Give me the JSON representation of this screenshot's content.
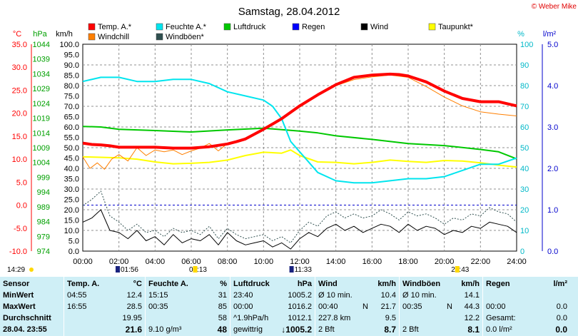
{
  "title": "Samstag, 28.04.2012",
  "copyright": "© Weber Mike",
  "legend": [
    {
      "label": "Temp. A.*",
      "color": "#ff0000"
    },
    {
      "label": "Windchill",
      "color": "#ff7f00"
    },
    {
      "label": "Feuchte A.*",
      "color": "#00e5ee"
    },
    {
      "label": "Windböen*",
      "color": "#2f4f4f"
    },
    {
      "label": "Luftdruck",
      "color": "#00c800"
    },
    {
      "label": "Regen",
      "color": "#0000ff"
    },
    {
      "label": "Wind",
      "color": "#000000"
    },
    {
      "label": "Taupunkt*",
      "color": "#ffff00"
    }
  ],
  "axes": {
    "temp_unit": "°C",
    "pressure_unit": "hPa",
    "wind_unit": "km/h",
    "humidity_unit": "%",
    "rain_unit": "l/m²",
    "temp_ticks": [
      "35.0",
      "30.0",
      "25.0",
      "20.0",
      "15.0",
      "10.0",
      "5.0",
      "0.0",
      "-5.0",
      "-10.0"
    ],
    "pressure_ticks": [
      "1044",
      "1039",
      "1034",
      "1029",
      "1024",
      "1019",
      "1014",
      "1009",
      "1004",
      "999",
      "994",
      "989",
      "984",
      "979",
      "974"
    ],
    "wind_ticks": [
      "100.0",
      "95.0",
      "90.0",
      "85.0",
      "80.0",
      "75.0",
      "70.0",
      "65.0",
      "60.0",
      "55.0",
      "50.0",
      "45.0",
      "40.0",
      "35.0",
      "30.0",
      "25.0",
      "20.0",
      "15.0",
      "10.0",
      "5.0",
      "0.0"
    ],
    "humidity_ticks": [
      "100",
      "90",
      "80",
      "70",
      "60",
      "50",
      "40",
      "30",
      "20",
      "10",
      "0"
    ],
    "rain_ticks": [
      "5.0",
      "4.0",
      "3.0",
      "2.0",
      "1.0",
      "0.0"
    ],
    "x_ticks": [
      "00:00",
      "02:00",
      "04:00",
      "06:00",
      "08:00",
      "10:00",
      "12:00",
      "14:00",
      "16:00",
      "18:00",
      "20:00",
      "22:00",
      "24:00"
    ],
    "sun_events": [
      "14:29",
      "01:56",
      "06:13",
      "11:33",
      "20:43"
    ]
  },
  "chart_data": {
    "type": "line",
    "title": "Samstag, 28.04.2012",
    "x_unit": "hours",
    "xlim": [
      0,
      24
    ],
    "temp_ylim": [
      -10,
      35
    ],
    "wind_ylim": [
      0,
      100
    ],
    "pressure_ylim": [
      974,
      1044
    ],
    "humidity_ylim": [
      0,
      100
    ],
    "rain_ylim": [
      0,
      5
    ],
    "series": [
      {
        "name": "Temp. A.*",
        "axis": "temp",
        "color": "#ff0000",
        "width": 4,
        "x": [
          0,
          0.5,
          1,
          1.5,
          2,
          3,
          4,
          5,
          6,
          7,
          8,
          8.5,
          9,
          10,
          11,
          12,
          13,
          14,
          15,
          16,
          17,
          17.5,
          18,
          19,
          20,
          21,
          22,
          23,
          24
        ],
        "y": [
          13.5,
          13.2,
          13.1,
          12.9,
          12.6,
          12.6,
          12.6,
          12.4,
          12.4,
          12.7,
          13.3,
          13.8,
          14.4,
          16.5,
          18.8,
          21.6,
          24.0,
          26.2,
          27.8,
          28.3,
          28.5,
          28.4,
          28.1,
          26.8,
          24.8,
          23.2,
          22.5,
          22.5,
          21.6
        ]
      },
      {
        "name": "Windchill",
        "axis": "temp",
        "color": "#ff7f00",
        "width": 1,
        "x": [
          0,
          0.4,
          0.8,
          1.2,
          1.6,
          2,
          2.5,
          3,
          3.5,
          4,
          4.5,
          5,
          5.5,
          6,
          6.5,
          7,
          7.5,
          8,
          8.5,
          9,
          10,
          11,
          12,
          13,
          14,
          15,
          16,
          17,
          18,
          19,
          20,
          21,
          22,
          23,
          24
        ],
        "y": [
          10.5,
          8.0,
          9.2,
          7.8,
          10.0,
          11.0,
          9.6,
          12.5,
          10.8,
          12.0,
          11.6,
          12.0,
          11.0,
          11.8,
          12.4,
          13.4,
          11.8,
          13.4,
          13.6,
          14.3,
          16.4,
          18.6,
          21.3,
          23.8,
          26.0,
          27.3,
          27.9,
          28.3,
          27.8,
          25.8,
          23.5,
          21.6,
          20.3,
          19.8,
          19.4
        ]
      },
      {
        "name": "Feuchte A.*",
        "axis": "humidity",
        "color": "#00e5ee",
        "width": 2,
        "x": [
          0,
          1,
          2,
          3,
          4,
          5,
          6,
          7,
          8,
          9,
          10,
          10.5,
          11,
          11.5,
          12,
          12.5,
          13,
          14,
          15,
          16,
          17,
          18,
          19,
          20,
          21,
          22,
          23,
          24
        ],
        "y": [
          82,
          84,
          84,
          82,
          82,
          83,
          83,
          81,
          77,
          75,
          73,
          70,
          64,
          53,
          48,
          43,
          38,
          34,
          33,
          33,
          34,
          35,
          35,
          36,
          39,
          42,
          42,
          45
        ]
      },
      {
        "name": "Luftdruck",
        "axis": "pressure",
        "color": "#00c800",
        "width": 2,
        "x": [
          0,
          1,
          2,
          4,
          6,
          8,
          10,
          12,
          13,
          14,
          16,
          18,
          20,
          22,
          23,
          24
        ],
        "y": [
          1016.2,
          1016.0,
          1015.2,
          1014.8,
          1014.3,
          1015.0,
          1015.6,
          1014.6,
          1014.0,
          1013.0,
          1011.8,
          1010.4,
          1009.7,
          1008.4,
          1007.6,
          1005.2
        ]
      },
      {
        "name": "Taupunkt*",
        "axis": "temp",
        "color": "#ffff00",
        "width": 2,
        "x": [
          0,
          1,
          2,
          3,
          4,
          5,
          6,
          7,
          8,
          9,
          10,
          11,
          11.5,
          12,
          13,
          14,
          15,
          16,
          17,
          18,
          19,
          20,
          21,
          22,
          23,
          24
        ],
        "y": [
          10.5,
          10.4,
          10.3,
          10.0,
          9.4,
          9.0,
          9.1,
          9.3,
          9.8,
          10.8,
          11.5,
          11.3,
          12.0,
          10.8,
          9.4,
          9.3,
          9.0,
          9.3,
          9.8,
          9.5,
          9.3,
          9.7,
          9.6,
          9.2,
          8.7,
          8.3
        ]
      },
      {
        "name": "Wind",
        "axis": "wind",
        "color": "#000000",
        "width": 1,
        "x": [
          0,
          0.5,
          1,
          1.5,
          2,
          2.5,
          3,
          3.5,
          4,
          4.5,
          5,
          5.5,
          6,
          6.5,
          7,
          7.5,
          8,
          8.5,
          9,
          9.5,
          10,
          10.5,
          11,
          11.5,
          12,
          12.5,
          13,
          13.5,
          14,
          14.5,
          15,
          15.5,
          16,
          16.5,
          17,
          17.5,
          18,
          18.5,
          19,
          19.5,
          20,
          20.5,
          21,
          21.5,
          22,
          22.5,
          23,
          23.5,
          24
        ],
        "y": [
          14,
          16,
          20,
          10,
          9,
          6,
          10,
          5,
          7,
          3,
          8,
          4,
          6,
          5,
          8,
          3,
          9,
          5,
          3,
          4,
          5,
          2,
          4,
          1,
          6,
          9,
          7,
          11,
          13,
          10,
          12,
          9,
          11,
          13,
          12,
          9,
          13,
          10,
          12,
          11,
          8,
          10,
          9,
          12,
          11,
          14,
          13,
          12,
          9
        ]
      },
      {
        "name": "Windböen*",
        "axis": "wind",
        "color": "#2f4f4f",
        "width": 1,
        "dashed": true,
        "x": [
          0,
          0.5,
          1,
          1.5,
          2,
          2.5,
          3,
          3.5,
          4,
          4.5,
          5,
          5.5,
          6,
          6.5,
          7,
          7.5,
          8,
          8.5,
          9,
          9.5,
          10,
          10.5,
          11,
          11.5,
          12,
          12.5,
          13,
          13.5,
          14,
          14.5,
          15,
          15.5,
          16,
          16.5,
          17,
          17.5,
          18,
          18.5,
          19,
          19.5,
          20,
          20.5,
          21,
          21.5,
          22,
          22.5,
          23,
          23.5,
          24
        ],
        "y": [
          22,
          25,
          29,
          17,
          14,
          10,
          13,
          9,
          10,
          7,
          11,
          9,
          10,
          8,
          12,
          6,
          11,
          8,
          6,
          7,
          8,
          5,
          7,
          4,
          10,
          14,
          12,
          17,
          19,
          16,
          18,
          16,
          17,
          20,
          18,
          15,
          19,
          17,
          18,
          16,
          13,
          16,
          15,
          18,
          17,
          21,
          19,
          18,
          14
        ]
      }
    ]
  },
  "stats": {
    "sensor": {
      "header": "Sensor",
      "rows": [
        "MinWert",
        "MaxWert",
        "Durchschnitt",
        "28.04. 23:55"
      ]
    },
    "temp": {
      "header": "Temp. A.",
      "unit": "°C",
      "rows": [
        {
          "time": "04:55",
          "value": "12.4"
        },
        {
          "time": "16:55",
          "value": "28.5"
        },
        {
          "time": "",
          "value": "19.95"
        },
        {
          "time": "",
          "value": "21.6"
        }
      ]
    },
    "humidity": {
      "header": "Feuchte A.",
      "unit": "%",
      "rows": [
        {
          "time": "15:15",
          "value": "31"
        },
        {
          "time": "00:35",
          "value": "85"
        },
        {
          "time": "",
          "value": "58"
        },
        {
          "time": "9.10 g/m³",
          "value": "48"
        }
      ]
    },
    "pressure": {
      "header": "Luftdruck",
      "unit": "hPa",
      "rows": [
        {
          "time": "23:40",
          "value": "1005.2"
        },
        {
          "time": "00:00",
          "value": "1016.2"
        },
        {
          "time": "^1.9hPa/h",
          "value": "1012.1"
        },
        {
          "time": "gewittrig",
          "value": "↓1005.2"
        }
      ]
    },
    "wind": {
      "header": "Wind",
      "unit": "km/h",
      "rows": [
        {
          "time": "Ø 10 min.",
          "mid": "",
          "value": "10.4"
        },
        {
          "time": "00:40",
          "mid": "N",
          "value": "21.7"
        },
        {
          "time": "227.8 km",
          "mid": "",
          "value": "9.5"
        },
        {
          "time": "2 Bft",
          "mid": "",
          "value": "8.7"
        }
      ]
    },
    "gust": {
      "header": "Windböen",
      "unit": "km/h",
      "rows": [
        {
          "time": "Ø 10 min.",
          "value": "14.1"
        },
        {
          "time": "00:35",
          "mid": "N",
          "value": "44.3"
        },
        {
          "time": "",
          "value": "12.2"
        },
        {
          "time": "2 Bft",
          "value": "8.1"
        }
      ]
    },
    "rain": {
      "header": "Regen",
      "unit": "l/m²",
      "rows": [
        {
          "time": "",
          "value": ""
        },
        {
          "time": "00:00",
          "value": "0.0"
        },
        {
          "time": "Gesamt:",
          "value": "0.0"
        },
        {
          "time": "0.0 l/m²",
          "value": "0.0"
        }
      ]
    }
  }
}
